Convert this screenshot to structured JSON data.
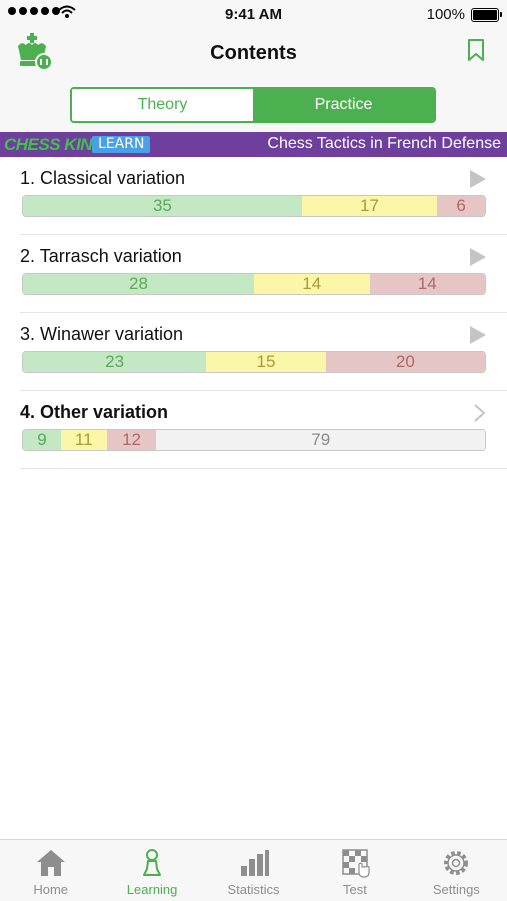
{
  "status": {
    "time": "9:41 AM",
    "battery": "100%"
  },
  "nav": {
    "title": "Contents"
  },
  "segments": {
    "theory": "Theory",
    "practice": "Practice"
  },
  "banner": {
    "brand": "CHESS KING",
    "learn": "LEARN",
    "subtitle": "Chess Tactics in French Defense"
  },
  "chapters": [
    {
      "title": "1. Classical variation",
      "green": "35",
      "yellow": "17",
      "red": "6",
      "rest": ""
    },
    {
      "title": "2. Tarrasch variation",
      "green": "28",
      "yellow": "14",
      "red": "14",
      "rest": ""
    },
    {
      "title": "3. Winawer variation",
      "green": "23",
      "yellow": "15",
      "red": "20",
      "rest": ""
    },
    {
      "title": "4. Other variation",
      "green": "9",
      "yellow": "11",
      "red": "12",
      "rest": "79"
    }
  ],
  "tabs": [
    {
      "label": "Home"
    },
    {
      "label": "Learning"
    },
    {
      "label": "Statistics"
    },
    {
      "label": "Test"
    },
    {
      "label": "Settings"
    }
  ],
  "colors": {
    "accent": "#4caf50",
    "banner": "#6f3f9e",
    "good": "#c5e8c4",
    "medium": "#fbf6a8",
    "bad": "#e6c5c5"
  }
}
